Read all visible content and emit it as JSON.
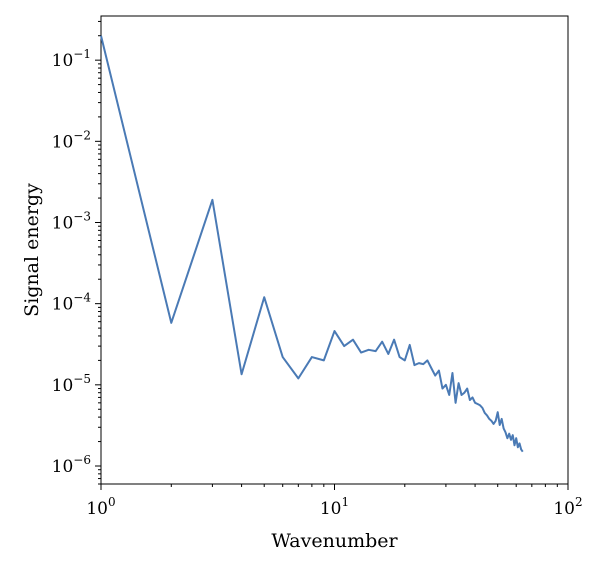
{
  "chart_data": {
    "type": "line",
    "title": "",
    "xlabel": "Wavenumber",
    "ylabel": "Signal energy",
    "xscale": "log",
    "yscale": "log",
    "xlim": [
      1,
      100
    ],
    "ylim": [
      6e-07,
      0.35
    ],
    "grid": false,
    "legend": "none",
    "line_color": "#4a7ab5",
    "x_ticks": [
      {
        "base": "10",
        "exp": "0"
      },
      {
        "base": "10",
        "exp": "1"
      },
      {
        "base": "10",
        "exp": "2"
      }
    ],
    "y_ticks": [
      {
        "value": 1e-06,
        "base": "10",
        "exp": "−6"
      },
      {
        "value": 1e-05,
        "base": "10",
        "exp": "−5"
      },
      {
        "value": 0.0001,
        "base": "10",
        "exp": "−4"
      },
      {
        "value": 0.001,
        "base": "10",
        "exp": "−3"
      },
      {
        "value": 0.01,
        "base": "10",
        "exp": "−2"
      },
      {
        "value": 0.1,
        "base": "10",
        "exp": "−1"
      }
    ],
    "series": [
      {
        "x": [
          1,
          2,
          3,
          4,
          5,
          6,
          7,
          8,
          9,
          10,
          11,
          12,
          13,
          14,
          15,
          16,
          17,
          18,
          19,
          20,
          21,
          22,
          23,
          24,
          25,
          26,
          27,
          28,
          29,
          30,
          31,
          32,
          33,
          34,
          35,
          36,
          37,
          38,
          39,
          40,
          41,
          42,
          43,
          44,
          45,
          46,
          47,
          48,
          49,
          50,
          51,
          52,
          53,
          54,
          55,
          56,
          57,
          58,
          59,
          60,
          61,
          62,
          63,
          64
        ],
        "y": [
          0.2,
          5.8e-05,
          0.0019,
          1.35e-05,
          0.00012,
          2.2e-05,
          1.2e-05,
          2.2e-05,
          2e-05,
          4.6e-05,
          3e-05,
          3.6e-05,
          2.5e-05,
          2.7e-05,
          2.6e-05,
          3.4e-05,
          2.4e-05,
          3.6e-05,
          2.2e-05,
          2e-05,
          3.1e-05,
          1.75e-05,
          1.85e-05,
          1.8e-05,
          2e-05,
          1.6e-05,
          1.3e-05,
          1.5e-05,
          9e-06,
          1e-05,
          7.5e-06,
          1.4e-05,
          6e-06,
          1.05e-05,
          7.5e-06,
          8e-06,
          9e-06,
          6.5e-06,
          7e-06,
          6e-06,
          5.8e-06,
          5.6e-06,
          5.2e-06,
          4.5e-06,
          4.2e-06,
          3.8e-06,
          3.6e-06,
          3.3e-06,
          3.6e-06,
          4.6e-06,
          3.2e-06,
          3.8e-06,
          2.9e-06,
          2.6e-06,
          2.2e-06,
          2.5e-06,
          2.1e-06,
          2.4e-06,
          1.8e-06,
          2.2e-06,
          1.7e-06,
          1.9e-06,
          1.6e-06,
          1.5e-06
        ]
      }
    ]
  }
}
